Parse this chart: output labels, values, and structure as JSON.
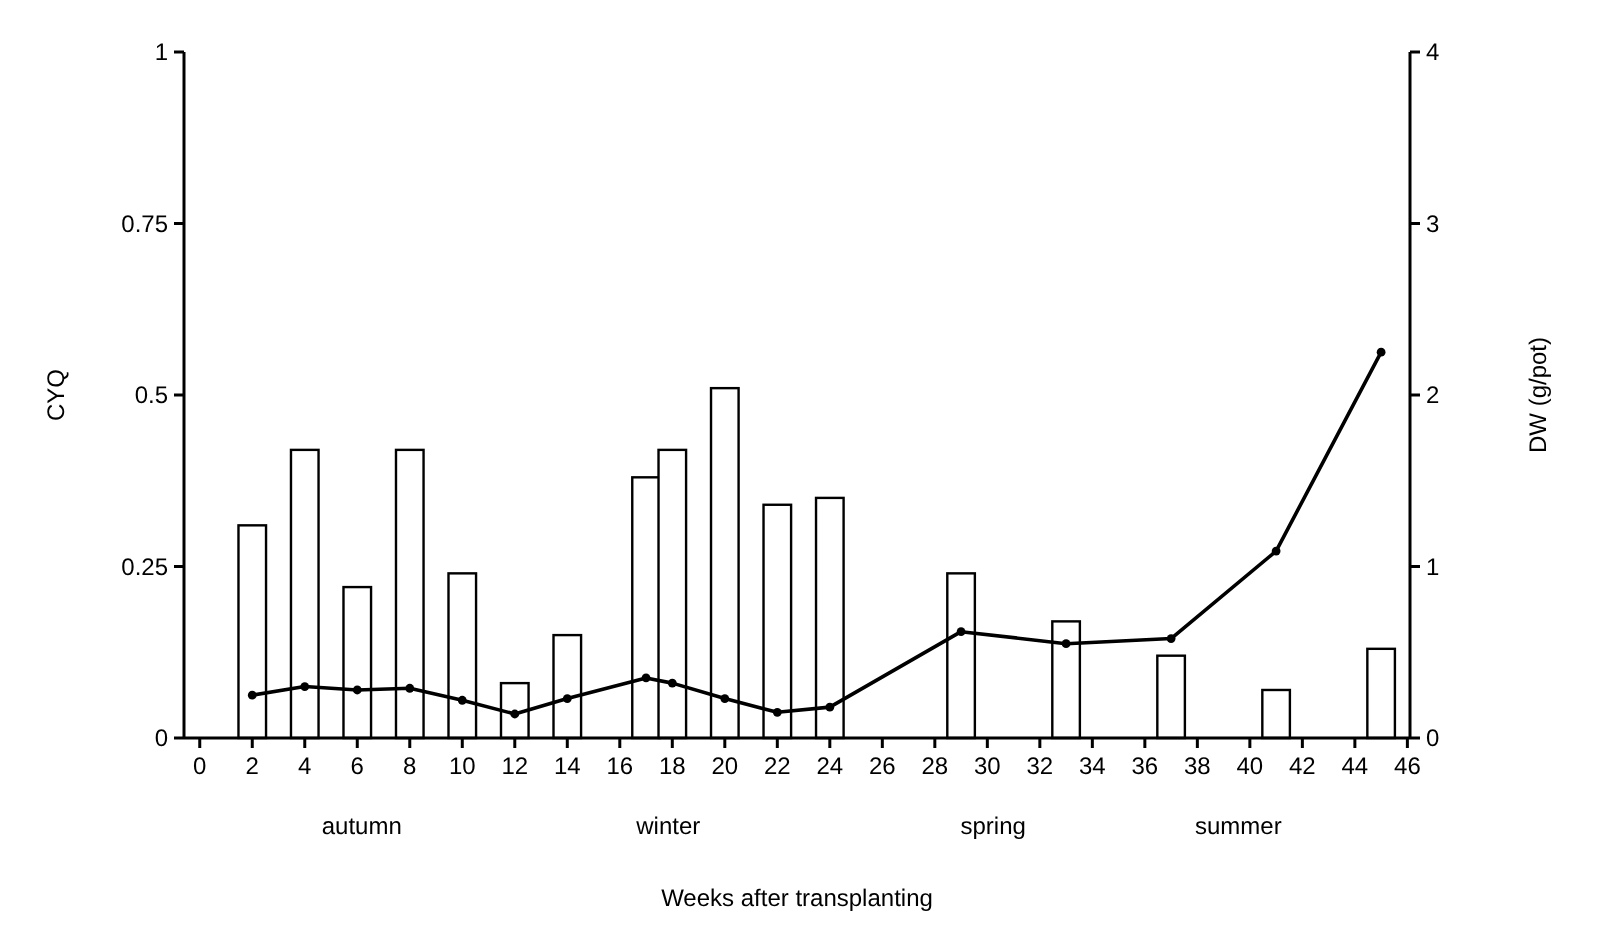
{
  "chart_data": {
    "type": "bar",
    "xlabel": "Weeks after transplanting",
    "ylabel": "CYQ",
    "y2label": "DW (g/pot)",
    "x": [
      2,
      4,
      6,
      8,
      10,
      12,
      14,
      17,
      18,
      20,
      22,
      24,
      29,
      33,
      37,
      41,
      45
    ],
    "series": [
      {
        "color": "#ffffff",
        "values": [
          0.31,
          0.42,
          0.22,
          0.42,
          0.24,
          0.08,
          0.15,
          0.38,
          0.42,
          0.51,
          0.34,
          0.35,
          0.24,
          0.17,
          0.12,
          0.07,
          0.13
        ]
      },
      {
        "type": "line",
        "axis": "y2",
        "color": "#000000",
        "values": [
          0.25,
          0.3,
          0.28,
          0.29,
          0.22,
          0.14,
          0.23,
          0.35,
          0.32,
          0.23,
          0.15,
          0.18,
          0.62,
          0.55,
          0.58,
          1.09,
          2.25
        ]
      }
    ],
    "xlim": [
      -0.6,
      46.1
    ],
    "xticks": [
      0,
      2,
      4,
      6,
      8,
      10,
      12,
      14,
      16,
      18,
      20,
      22,
      24,
      26,
      28,
      30,
      32,
      34,
      36,
      38,
      40,
      42,
      44,
      46
    ],
    "ylim": [
      0,
      1
    ],
    "yticks": [
      0,
      0.25,
      0.5,
      0.75,
      1
    ],
    "y2lim": [
      0,
      4
    ],
    "y2ticks": [
      0,
      1,
      2,
      3,
      4
    ],
    "marker": "circle",
    "line_style": "solid",
    "grid": false,
    "annotations": [
      "autumn",
      "winter",
      "spring",
      "summer"
    ]
  }
}
